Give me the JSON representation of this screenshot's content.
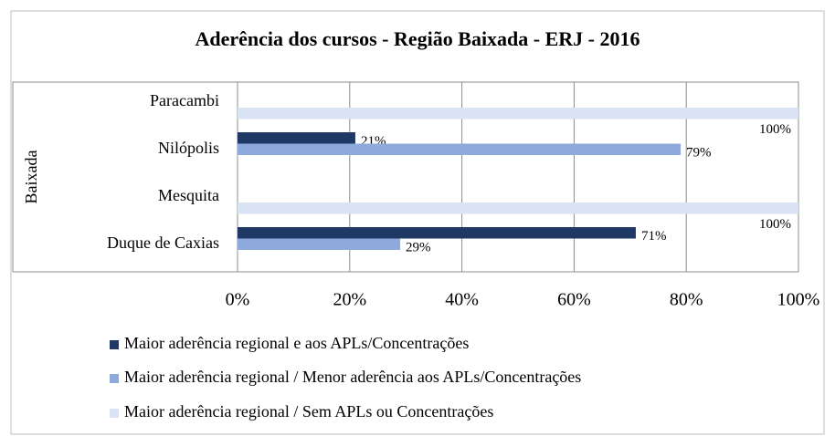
{
  "chart_data": {
    "type": "hbar",
    "title": "Aderência dos cursos - Região Baixada - ERJ - 2016",
    "group_label": "Baixada",
    "categories": [
      "Paracambi",
      "Nilópolis",
      "Mesquita",
      "Duque de Caxias"
    ],
    "series": [
      {
        "name": "Maior aderência regional e aos APLs/Concentrações",
        "color": "#1f3864",
        "values": [
          null,
          21,
          null,
          71
        ],
        "value_labels": [
          null,
          "21%",
          null,
          "71%"
        ]
      },
      {
        "name": "Maior aderência regional / Menor aderência aos APLs/Concentrações",
        "color": "#8ea9db",
        "values": [
          null,
          79,
          null,
          29
        ],
        "value_labels": [
          null,
          "79%",
          null,
          "29%"
        ]
      },
      {
        "name": "Maior aderência regional / Sem APLs ou Concentrações",
        "color": "#dae3f3",
        "values": [
          100,
          null,
          100,
          null
        ],
        "value_labels": [
          "100%",
          null,
          "100%",
          null
        ]
      }
    ],
    "xlim": [
      0,
      100
    ],
    "xticks": [
      {
        "value": 0,
        "label": "0%"
      },
      {
        "value": 20,
        "label": "20%"
      },
      {
        "value": 40,
        "label": "40%"
      },
      {
        "value": 60,
        "label": "60%"
      },
      {
        "value": 80,
        "label": "80%"
      },
      {
        "value": 100,
        "label": "100%"
      }
    ],
    "grid": true
  }
}
